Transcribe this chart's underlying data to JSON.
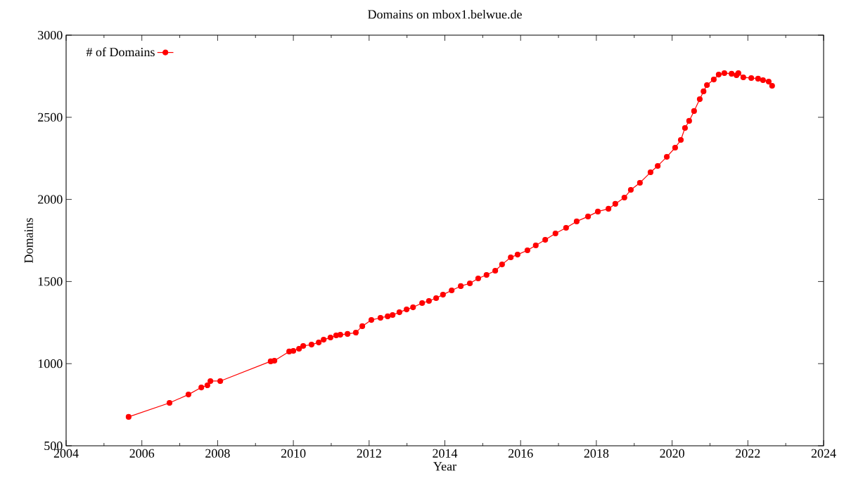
{
  "chart_data": {
    "type": "line",
    "title": "Domains on mbox1.belwue.de",
    "xlabel": "Year",
    "ylabel": "Domains",
    "xlim": [
      2004,
      2024
    ],
    "xticks": [
      2004,
      2006,
      2008,
      2010,
      2012,
      2014,
      2016,
      2018,
      2020,
      2022,
      2024
    ],
    "ylim": [
      500,
      3000
    ],
    "yticks": [
      500,
      1000,
      1500,
      2000,
      2500,
      3000
    ],
    "legend": "top left",
    "marker": "circle",
    "line_style": "solid",
    "grid": false,
    "series": [
      {
        "name": "# of Domains",
        "color": "#ff0000",
        "x": [
          2005.65,
          2006.73,
          2007.23,
          2007.57,
          2007.73,
          2007.81,
          2008.07,
          2009.4,
          2009.5,
          2009.89,
          2010.0,
          2010.15,
          2010.26,
          2010.48,
          2010.67,
          2010.8,
          2010.98,
          2011.13,
          2011.24,
          2011.43,
          2011.65,
          2011.82,
          2012.06,
          2012.3,
          2012.49,
          2012.62,
          2012.8,
          2012.99,
          2013.16,
          2013.4,
          2013.58,
          2013.77,
          2013.95,
          2014.18,
          2014.42,
          2014.66,
          2014.88,
          2015.1,
          2015.33,
          2015.51,
          2015.74,
          2015.92,
          2016.18,
          2016.4,
          2016.65,
          2016.92,
          2017.2,
          2017.48,
          2017.78,
          2018.04,
          2018.32,
          2018.5,
          2018.74,
          2018.91,
          2019.15,
          2019.43,
          2019.62,
          2019.86,
          2020.08,
          2020.23,
          2020.34,
          2020.45,
          2020.58,
          2020.73,
          2020.83,
          2020.92,
          2021.1,
          2021.23,
          2021.38,
          2021.57,
          2021.7,
          2021.75,
          2021.88,
          2022.09,
          2022.27,
          2022.4,
          2022.55,
          2022.64
        ],
        "values": [
          676,
          761,
          812,
          855,
          868,
          894,
          894,
          1014,
          1018,
          1074,
          1078,
          1091,
          1108,
          1116,
          1129,
          1146,
          1159,
          1172,
          1176,
          1181,
          1189,
          1228,
          1266,
          1279,
          1288,
          1296,
          1313,
          1330,
          1343,
          1369,
          1382,
          1399,
          1420,
          1446,
          1472,
          1489,
          1519,
          1540,
          1566,
          1604,
          1647,
          1664,
          1690,
          1720,
          1754,
          1793,
          1827,
          1866,
          1896,
          1926,
          1943,
          1973,
          2011,
          2058,
          2101,
          2165,
          2204,
          2259,
          2315,
          2362,
          2435,
          2478,
          2538,
          2610,
          2658,
          2696,
          2730,
          2760,
          2769,
          2765,
          2756,
          2769,
          2743,
          2739,
          2735,
          2726,
          2717,
          2692
        ]
      }
    ]
  }
}
